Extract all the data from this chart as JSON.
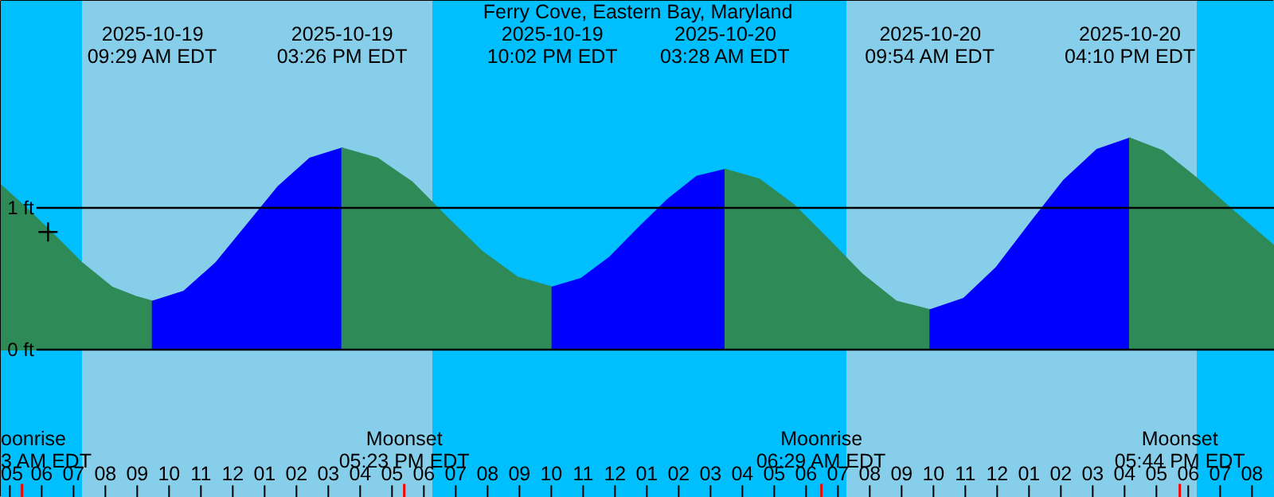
{
  "chart_data": {
    "type": "area",
    "title": "Ferry Cove, Eastern Bay, Maryland",
    "xlim": [
      "2025-10-19T04:43",
      "2025-10-20T20:43"
    ],
    "ylim": [
      -1.045,
      2.46
    ],
    "yticks": [
      {
        "value": 0,
        "label": "0 ft"
      },
      {
        "value": 1,
        "label": "1 ft"
      }
    ],
    "grid": "y",
    "xticks": [
      {
        "value": "2025-10-19T05:00",
        "label": "05"
      },
      {
        "value": "2025-10-19T06:00",
        "label": "06"
      },
      {
        "value": "2025-10-19T07:00",
        "label": "07"
      },
      {
        "value": "2025-10-19T08:00",
        "label": "08"
      },
      {
        "value": "2025-10-19T09:00",
        "label": "09"
      },
      {
        "value": "2025-10-19T10:00",
        "label": "10"
      },
      {
        "value": "2025-10-19T11:00",
        "label": "11"
      },
      {
        "value": "2025-10-19T12:00",
        "label": "12"
      },
      {
        "value": "2025-10-19T13:00",
        "label": "01"
      },
      {
        "value": "2025-10-19T14:00",
        "label": "02"
      },
      {
        "value": "2025-10-19T15:00",
        "label": "03"
      },
      {
        "value": "2025-10-19T16:00",
        "label": "04"
      },
      {
        "value": "2025-10-19T17:00",
        "label": "05"
      },
      {
        "value": "2025-10-19T18:00",
        "label": "06"
      },
      {
        "value": "2025-10-19T19:00",
        "label": "07"
      },
      {
        "value": "2025-10-19T20:00",
        "label": "08"
      },
      {
        "value": "2025-10-19T21:00",
        "label": "09"
      },
      {
        "value": "2025-10-19T22:00",
        "label": "10"
      },
      {
        "value": "2025-10-19T23:00",
        "label": "11"
      },
      {
        "value": "2025-10-20T00:00",
        "label": "12"
      },
      {
        "value": "2025-10-20T01:00",
        "label": "01"
      },
      {
        "value": "2025-10-20T02:00",
        "label": "02"
      },
      {
        "value": "2025-10-20T03:00",
        "label": "03"
      },
      {
        "value": "2025-10-20T04:00",
        "label": "04"
      },
      {
        "value": "2025-10-20T05:00",
        "label": "05"
      },
      {
        "value": "2025-10-20T06:00",
        "label": "06"
      },
      {
        "value": "2025-10-20T07:00",
        "label": "07"
      },
      {
        "value": "2025-10-20T08:00",
        "label": "08"
      },
      {
        "value": "2025-10-20T09:00",
        "label": "09"
      },
      {
        "value": "2025-10-20T10:00",
        "label": "10"
      },
      {
        "value": "2025-10-20T11:00",
        "label": "11"
      },
      {
        "value": "2025-10-20T12:00",
        "label": "12"
      },
      {
        "value": "2025-10-20T13:00",
        "label": "01"
      },
      {
        "value": "2025-10-20T14:00",
        "label": "02"
      },
      {
        "value": "2025-10-20T15:00",
        "label": "03"
      },
      {
        "value": "2025-10-20T16:00",
        "label": "04"
      },
      {
        "value": "2025-10-20T17:00",
        "label": "05"
      },
      {
        "value": "2025-10-20T18:00",
        "label": "06"
      },
      {
        "value": "2025-10-20T19:00",
        "label": "07"
      },
      {
        "value": "2025-10-20T20:00",
        "label": "08"
      }
    ],
    "bands": [
      {
        "axis": "x",
        "from": "2025-10-19T04:43",
        "to": "2025-10-19T07:16",
        "color": "#00bfff"
      },
      {
        "axis": "x",
        "from": "2025-10-19T07:16",
        "to": "2025-10-19T18:16",
        "color": "#87ceeb"
      },
      {
        "axis": "x",
        "from": "2025-10-19T18:16",
        "to": "2025-10-20T07:16",
        "color": "#00bfff"
      },
      {
        "axis": "x",
        "from": "2025-10-20T07:16",
        "to": "2025-10-20T18:16",
        "color": "#87ceeb"
      },
      {
        "axis": "x",
        "from": "2025-10-20T18:16",
        "to": "2025-10-20T20:43",
        "color": "#00bfff"
      }
    ],
    "series": [
      {
        "color": "#2e8b57",
        "x": [
          "2025-10-19T04:43",
          "2025-10-19T05:30",
          "2025-10-19T06:12",
          "2025-10-19T07:16",
          "2025-10-19T08:12",
          "2025-10-19T09:00",
          "2025-10-19T09:29"
        ],
        "values": [
          1.16,
          1.0,
          0.85,
          0.61,
          0.44,
          0.37,
          0.34
        ]
      },
      {
        "color": "#0000ff",
        "x": [
          "2025-10-19T09:29",
          "2025-10-19T10:28",
          "2025-10-19T11:28",
          "2025-10-19T12:27",
          "2025-10-19T13:26",
          "2025-10-19T14:26",
          "2025-10-19T15:26"
        ],
        "values": [
          0.34,
          0.41,
          0.61,
          0.88,
          1.15,
          1.35,
          1.42
        ]
      },
      {
        "color": "#2e8b57",
        "x": [
          "2025-10-19T15:26",
          "2025-10-19T16:32",
          "2025-10-19T17:38",
          "2025-10-19T18:44",
          "2025-10-19T19:50",
          "2025-10-19T20:56",
          "2025-10-19T22:02"
        ],
        "values": [
          1.42,
          1.35,
          1.18,
          0.93,
          0.69,
          0.51,
          0.44
        ]
      },
      {
        "color": "#0000ff",
        "x": [
          "2025-10-19T22:02",
          "2025-10-19T22:56",
          "2025-10-19T23:50",
          "2025-10-20T00:45",
          "2025-10-20T01:40",
          "2025-10-20T02:34",
          "2025-10-20T03:28"
        ],
        "values": [
          0.44,
          0.5,
          0.65,
          0.86,
          1.06,
          1.22,
          1.27
        ]
      },
      {
        "color": "#2e8b57",
        "x": [
          "2025-10-20T03:28",
          "2025-10-20T04:32",
          "2025-10-20T05:37",
          "2025-10-20T06:41",
          "2025-10-20T07:46",
          "2025-10-20T08:50",
          "2025-10-20T09:54"
        ],
        "values": [
          1.27,
          1.2,
          1.02,
          0.78,
          0.53,
          0.34,
          0.28
        ]
      },
      {
        "color": "#0000ff",
        "x": [
          "2025-10-20T09:54",
          "2025-10-20T10:57",
          "2025-10-20T11:59",
          "2025-10-20T13:02",
          "2025-10-20T14:05",
          "2025-10-20T15:08",
          "2025-10-20T16:10"
        ],
        "values": [
          0.28,
          0.36,
          0.58,
          0.89,
          1.19,
          1.41,
          1.49
        ]
      },
      {
        "color": "#2e8b57",
        "x": [
          "2025-10-20T16:10",
          "2025-10-20T17:12",
          "2025-10-20T18:12",
          "2025-10-20T19:18",
          "2025-10-20T20:42"
        ],
        "values": [
          1.49,
          1.4,
          1.22,
          1.0,
          0.73
        ]
      },
      {
        "type": "scatter",
        "marker": "cross",
        "color": "#000000",
        "x": [
          "2025-10-19T06:12"
        ],
        "values": [
          0.83
        ]
      }
    ],
    "ref_lines": [
      {
        "axis": "x",
        "value": "2025-10-19T05:23",
        "label": "oonrise\n3 AM EDT",
        "color": "#ff0000"
      },
      {
        "axis": "x",
        "value": "2025-10-19T17:23",
        "label": "Moonset\n05:23 PM EDT",
        "color": "#ff0000"
      },
      {
        "axis": "x",
        "value": "2025-10-20T06:29",
        "label": "Moonrise\n06:29 AM EDT",
        "color": "#ff0000"
      },
      {
        "axis": "x",
        "value": "2025-10-20T17:44",
        "label": "Moonset\n05:44 PM EDT",
        "color": "#ff0000"
      }
    ],
    "annotations": [
      "2025-10-19\n09:29 AM EDT",
      "2025-10-19\n03:26 PM EDT",
      "2025-10-19\n10:02 PM EDT",
      "2025-10-20\n03:28 AM EDT",
      "2025-10-20\n09:54 AM EDT",
      "2025-10-20\n04:10 PM EDT"
    ]
  }
}
